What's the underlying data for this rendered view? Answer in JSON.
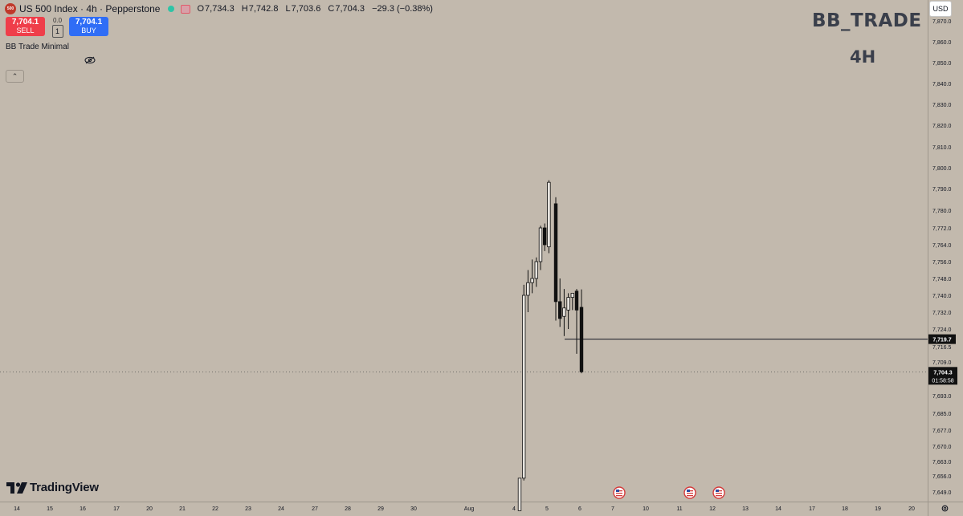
{
  "header": {
    "symbol_badge": "500",
    "title": "US 500 Index · 4h · Pepperstone",
    "ohlc": [
      {
        "label": "O",
        "value": "7,734.3"
      },
      {
        "label": "H",
        "value": "7,742.8"
      },
      {
        "label": "L",
        "value": "7,703.6"
      },
      {
        "label": "C",
        "value": "7,704.3"
      }
    ],
    "change": "−29.3 (−0.38%)"
  },
  "trade": {
    "sell_price": "7,704.1",
    "sell_label": "SELL",
    "buy_price": "7,704.1",
    "buy_label": "BUY",
    "spread": "0.0",
    "quantity": "1"
  },
  "indicator": {
    "name": "BB Trade Minimal"
  },
  "watermark": {
    "line1": "BB_TRADE",
    "line2": "4H"
  },
  "currency": "USD",
  "branding": {
    "logo_text": "TradingView"
  },
  "colors": {
    "background": "#c2b9ad",
    "up_candle": "#e6e3de",
    "down_candle": "#111111",
    "sell": "#ef3e4a",
    "buy": "#2f6df6"
  },
  "chart_data": {
    "type": "candlestick",
    "y_ticks": [
      7870.0,
      7860.0,
      7850.0,
      7840.0,
      7830.0,
      7820.0,
      7810.0,
      7800.0,
      7790.0,
      7780.0,
      7772.0,
      7764.0,
      7756.0,
      7748.0,
      7740.0,
      7732.0,
      7724.0,
      7716.5,
      7709.0,
      7693.0,
      7685.0,
      7677.0,
      7670.0,
      7663.0,
      7656.0,
      7649.0
    ],
    "y_tick_labels": [
      "7,870.0",
      "7,860.0",
      "7,850.0",
      "7,840.0",
      "7,830.0",
      "7,820.0",
      "7,810.0",
      "7,800.0",
      "7,790.0",
      "7,780.0",
      "7,772.0",
      "7,764.0",
      "7,756.0",
      "7,748.0",
      "7,740.0",
      "7,732.0",
      "7,724.0",
      "7,716.5",
      "7,709.0",
      "7,693.0",
      "7,685.0",
      "7,677.0",
      "7,670.0",
      "7,663.0",
      "7,656.0",
      "7,649.0"
    ],
    "x_tick_labels": [
      "14",
      "15",
      "16",
      "17",
      "20",
      "21",
      "22",
      "23",
      "24",
      "27",
      "28",
      "29",
      "30",
      "Aug",
      "4",
      "5",
      "6",
      "7",
      "10",
      "11",
      "12",
      "13",
      "14",
      "17",
      "18",
      "19",
      "20"
    ],
    "candles": [
      {
        "o": 7640,
        "h": 7655,
        "l": 7640,
        "c": 7655
      },
      {
        "o": 7655,
        "h": 7745,
        "l": 7654,
        "c": 7740
      },
      {
        "o": 7740,
        "h": 7752,
        "l": 7732,
        "c": 7746
      },
      {
        "o": 7746,
        "h": 7757,
        "l": 7741,
        "c": 7748
      },
      {
        "o": 7748,
        "h": 7758,
        "l": 7744,
        "c": 7756
      },
      {
        "o": 7756,
        "h": 7773,
        "l": 7752,
        "c": 7772
      },
      {
        "o": 7772,
        "h": 7774,
        "l": 7761,
        "c": 7764
      },
      {
        "o": 7763,
        "h": 7794,
        "l": 7760,
        "c": 7793
      },
      {
        "o": 7783,
        "h": 7786,
        "l": 7728,
        "c": 7737
      },
      {
        "o": 7737,
        "h": 7748,
        "l": 7725,
        "c": 7729
      },
      {
        "o": 7730,
        "h": 7743,
        "l": 7721,
        "c": 7734
      },
      {
        "o": 7733,
        "h": 7741,
        "l": 7724,
        "c": 7739
      },
      {
        "o": 7739,
        "h": 7741,
        "l": 7733,
        "c": 7741
      },
      {
        "o": 7742,
        "h": 7743,
        "l": 7713,
        "c": 7733
      },
      {
        "o": 7734.3,
        "h": 7742.8,
        "l": 7703.6,
        "c": 7704.3
      }
    ],
    "horizontal_line": {
      "value": 7719.7,
      "label": "7,719.7"
    },
    "last_price": {
      "value": 7704.3,
      "label": "7,704.3",
      "countdown": "01:58:58"
    },
    "events": 3
  }
}
